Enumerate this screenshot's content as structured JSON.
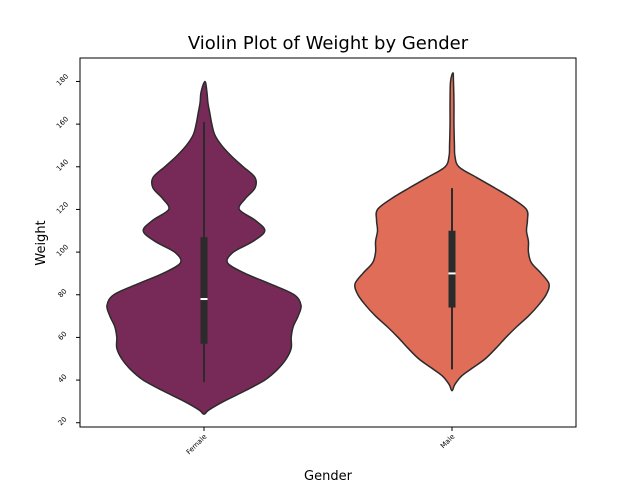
{
  "chart_data": {
    "type": "violin",
    "title": "Violin Plot of Weight by Gender",
    "xlabel": "Gender",
    "ylabel": "Weight",
    "categories": [
      "Female",
      "Male"
    ],
    "ylim": [
      18,
      191
    ],
    "yticks": [
      20,
      40,
      60,
      80,
      100,
      120,
      140,
      160,
      180
    ],
    "grid": false,
    "legend": "none",
    "colors": [
      "#772a57",
      "#e06d58"
    ],
    "outline_color": "#2b2b2b",
    "violins": [
      {
        "category": "Female",
        "min": 24,
        "max": 180,
        "whisker_low": 39,
        "whisker_high": 161,
        "q1": 57,
        "median": 78,
        "q3": 107,
        "profile": [
          [
            24,
            0.0
          ],
          [
            26,
            0.05
          ],
          [
            30,
            0.2
          ],
          [
            35,
            0.42
          ],
          [
            40,
            0.62
          ],
          [
            45,
            0.75
          ],
          [
            50,
            0.84
          ],
          [
            55,
            0.89
          ],
          [
            60,
            0.89
          ],
          [
            65,
            0.91
          ],
          [
            70,
            0.96
          ],
          [
            75,
            0.99
          ],
          [
            80,
            0.92
          ],
          [
            85,
            0.68
          ],
          [
            90,
            0.42
          ],
          [
            95,
            0.24
          ],
          [
            100,
            0.3
          ],
          [
            105,
            0.5
          ],
          [
            110,
            0.62
          ],
          [
            115,
            0.52
          ],
          [
            120,
            0.36
          ],
          [
            125,
            0.42
          ],
          [
            130,
            0.52
          ],
          [
            135,
            0.52
          ],
          [
            140,
            0.4
          ],
          [
            145,
            0.28
          ],
          [
            150,
            0.18
          ],
          [
            155,
            0.11
          ],
          [
            160,
            0.08
          ],
          [
            165,
            0.06
          ],
          [
            170,
            0.04
          ],
          [
            175,
            0.03
          ],
          [
            180,
            0.01
          ]
        ]
      },
      {
        "category": "Male",
        "min": 35,
        "max": 184,
        "whisker_low": 45,
        "whisker_high": 130,
        "q1": 74,
        "median": 90,
        "q3": 110,
        "profile": [
          [
            35,
            0.0
          ],
          [
            38,
            0.03
          ],
          [
            42,
            0.1
          ],
          [
            46,
            0.22
          ],
          [
            50,
            0.34
          ],
          [
            55,
            0.45
          ],
          [
            60,
            0.55
          ],
          [
            65,
            0.66
          ],
          [
            70,
            0.78
          ],
          [
            75,
            0.88
          ],
          [
            80,
            0.96
          ],
          [
            85,
            0.99
          ],
          [
            90,
            0.91
          ],
          [
            95,
            0.81
          ],
          [
            100,
            0.78
          ],
          [
            105,
            0.78
          ],
          [
            110,
            0.76
          ],
          [
            115,
            0.77
          ],
          [
            120,
            0.76
          ],
          [
            125,
            0.62
          ],
          [
            130,
            0.44
          ],
          [
            135,
            0.25
          ],
          [
            140,
            0.07
          ],
          [
            145,
            0.03
          ],
          [
            150,
            0.025
          ],
          [
            160,
            0.02
          ],
          [
            170,
            0.02
          ],
          [
            180,
            0.015
          ],
          [
            184,
            0.01
          ]
        ]
      }
    ]
  }
}
